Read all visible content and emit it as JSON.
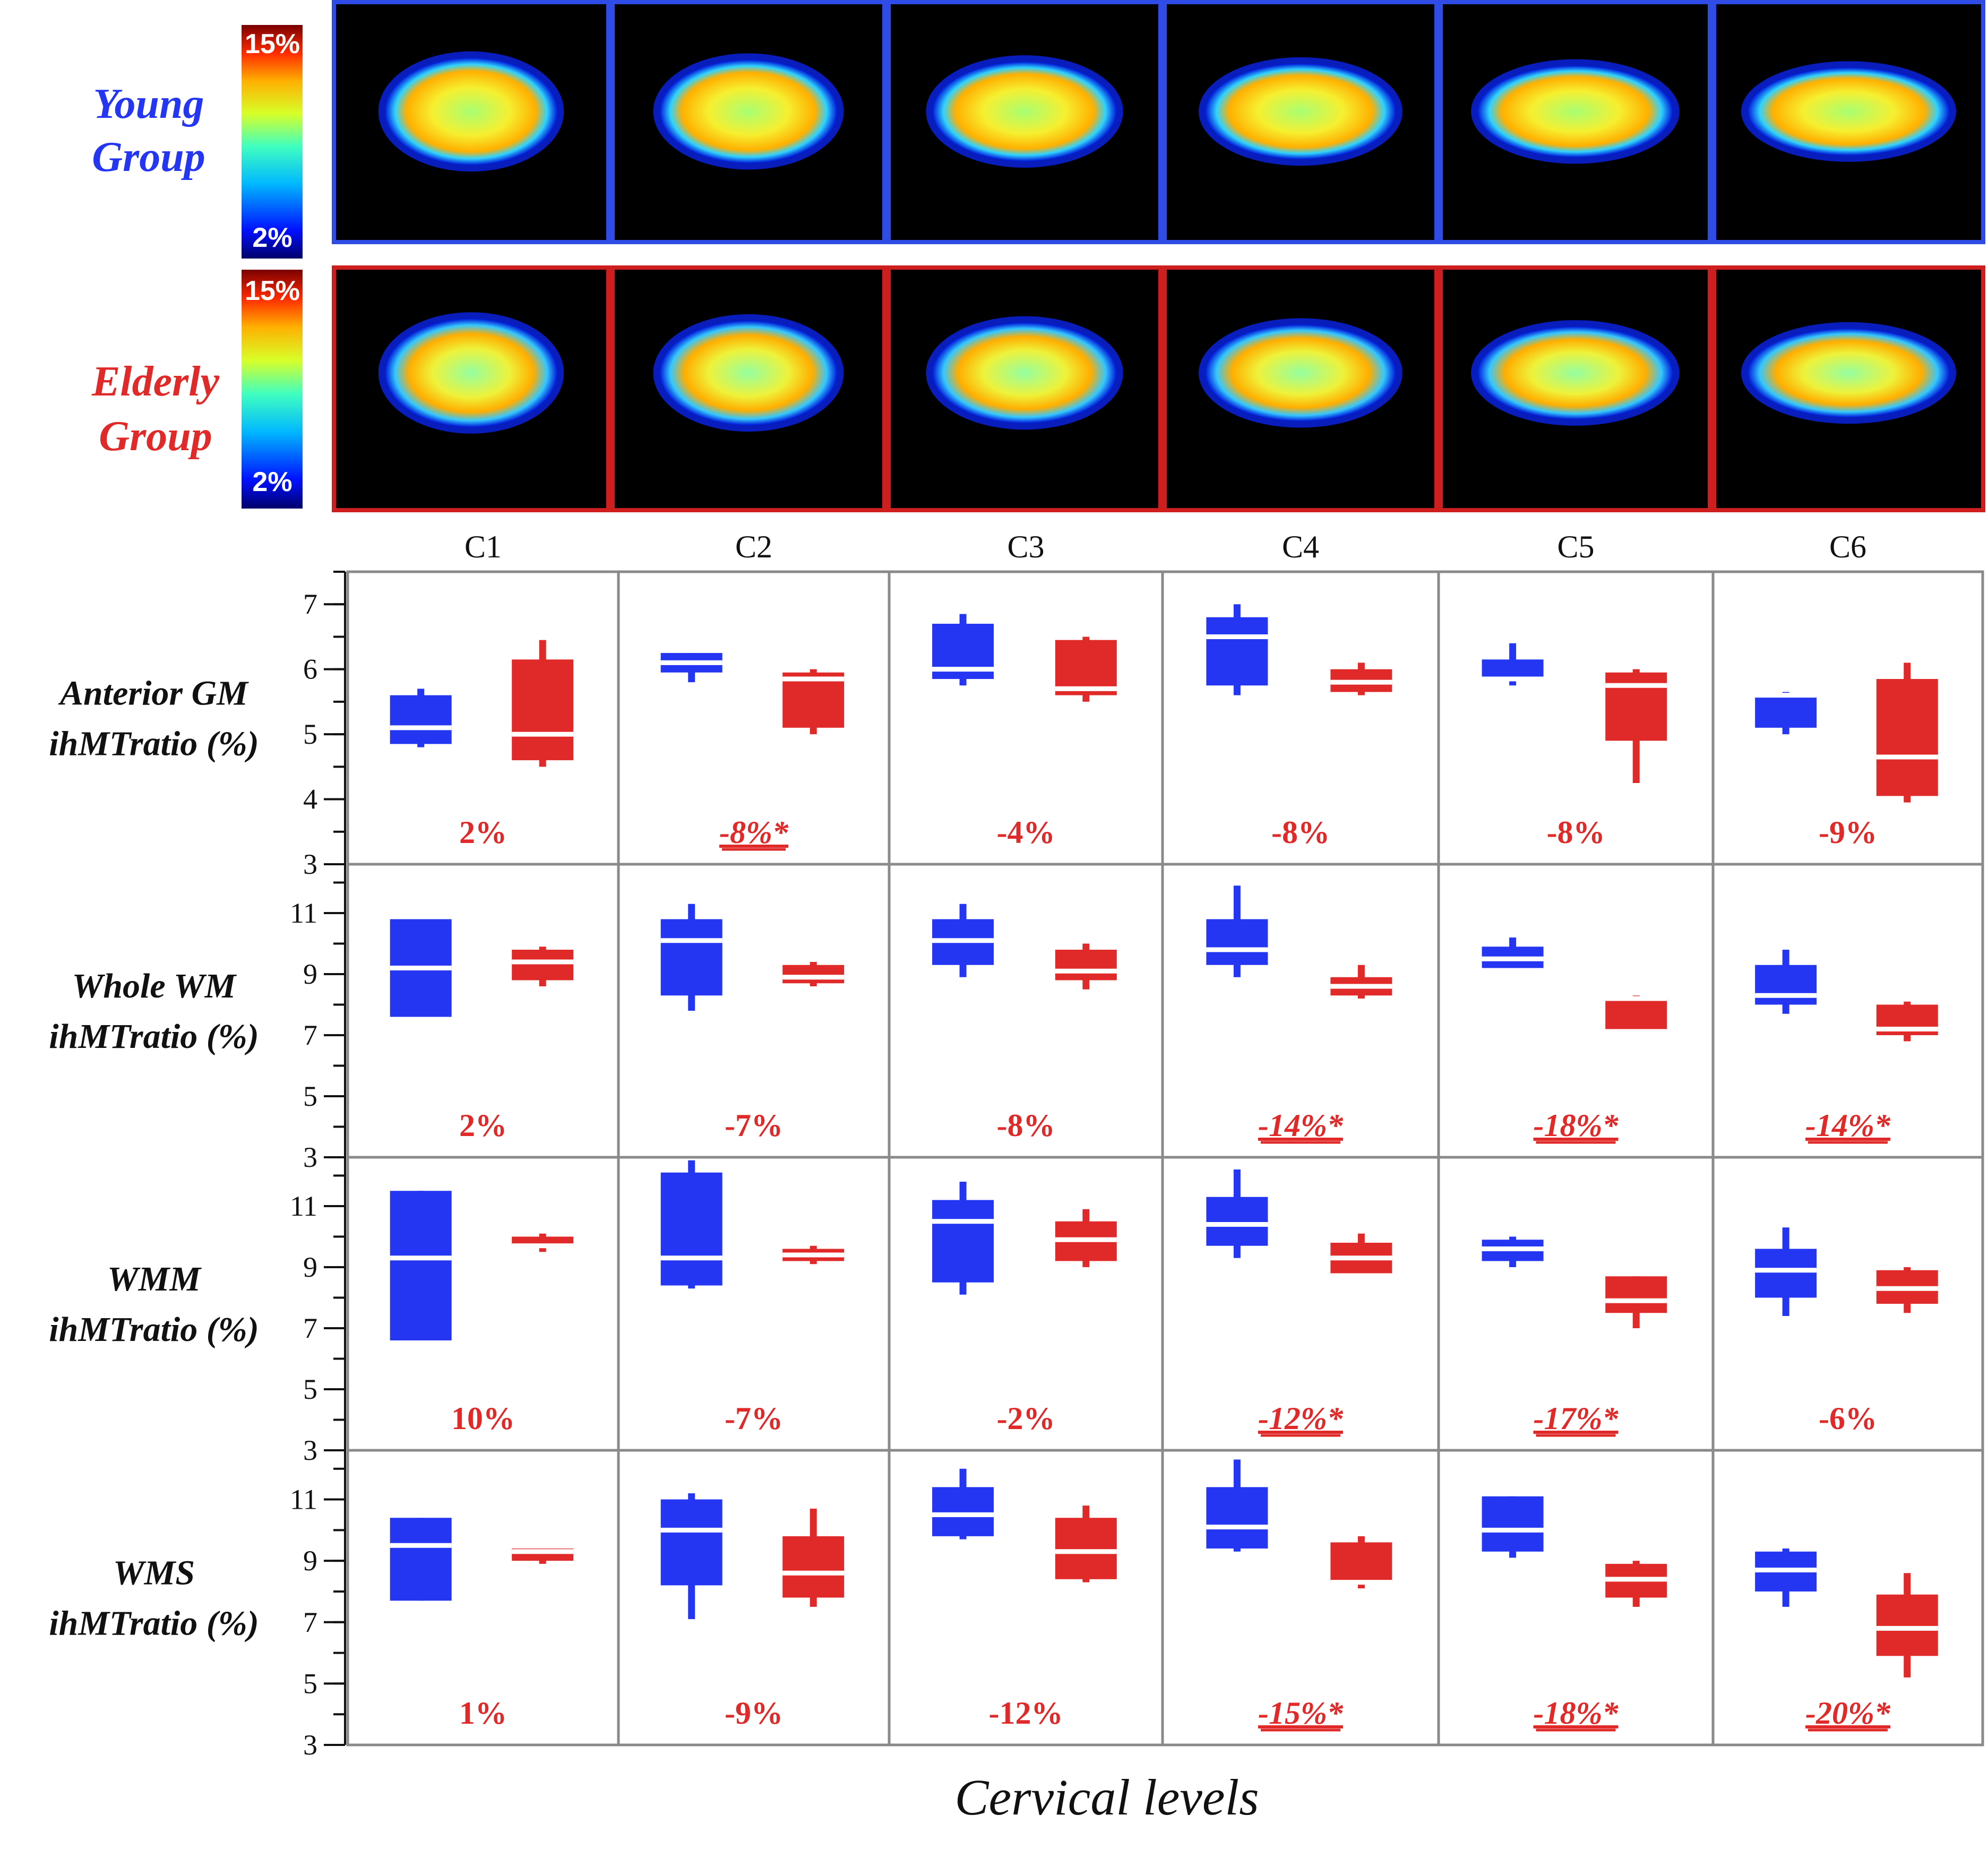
{
  "figure": {
    "young_group_label": "Young Group",
    "elderly_group_label": "Elderly Group",
    "colorbar_max": "15%",
    "colorbar_min": "2%",
    "x_axis_title": "Cervical levels"
  },
  "colors": {
    "young": "#2436f2",
    "elderly": "#e02a2a",
    "young_frame": "#2f4ce6",
    "elderly_frame": "#cf1e1e",
    "grid": "#8a8a8a"
  },
  "chart_data": {
    "type": "box",
    "levels": [
      "C1",
      "C2",
      "C3",
      "C4",
      "C5",
      "C6"
    ],
    "groups": [
      "Young",
      "Elderly"
    ],
    "panels": [
      {
        "ylabel_line1": "Anterior GM",
        "ylabel_line2": "ihMTratio (%)",
        "ylim": [
          3,
          7.5
        ],
        "ticks": [
          "3",
          "4",
          "5",
          "6",
          "7"
        ],
        "diffs": [
          {
            "text": "2%",
            "sig": false
          },
          {
            "text": "-8%*",
            "sig": true
          },
          {
            "text": "-4%",
            "sig": false
          },
          {
            "text": "-8%",
            "sig": false
          },
          {
            "text": "-8%",
            "sig": false
          },
          {
            "text": "-9%",
            "sig": false
          }
        ],
        "young": [
          {
            "min": 4.8,
            "q1": 4.85,
            "median": 5.1,
            "q3": 5.6,
            "max": 5.7
          },
          {
            "min": 5.8,
            "q1": 5.95,
            "median": 6.1,
            "q3": 6.25,
            "max": 6.25
          },
          {
            "min": 5.75,
            "q1": 5.85,
            "median": 6.0,
            "q3": 6.7,
            "max": 6.85
          },
          {
            "min": 5.6,
            "q1": 5.75,
            "median": 6.5,
            "q3": 6.8,
            "max": 7.0
          },
          {
            "min": 5.75,
            "q1": 5.85,
            "median": 5.85,
            "q3": 6.15,
            "max": 6.4
          },
          {
            "min": 5.0,
            "q1": 5.1,
            "median": 5.6,
            "q3": 5.6,
            "max": 5.65
          }
        ],
        "elderly": [
          {
            "min": 4.5,
            "q1": 4.6,
            "median": 5.0,
            "q3": 6.15,
            "max": 6.45
          },
          {
            "min": 5.0,
            "q1": 5.1,
            "median": 5.85,
            "q3": 5.95,
            "max": 6.0
          },
          {
            "min": 5.5,
            "q1": 5.6,
            "median": 5.7,
            "q3": 6.45,
            "max": 6.5
          },
          {
            "min": 5.6,
            "q1": 5.65,
            "median": 5.8,
            "q3": 6.0,
            "max": 6.1
          },
          {
            "min": 4.25,
            "q1": 4.9,
            "median": 5.75,
            "q3": 5.95,
            "max": 6.0
          },
          {
            "min": 3.95,
            "q1": 4.05,
            "median": 4.65,
            "q3": 5.85,
            "max": 6.1
          }
        ]
      },
      {
        "ylabel_line1": "Whole WM",
        "ylabel_line2": "ihMTratio (%)",
        "ylim": [
          3,
          12.6
        ],
        "ticks": [
          "3",
          "5",
          "7",
          "9",
          "11"
        ],
        "diffs": [
          {
            "text": "2%",
            "sig": false
          },
          {
            "text": "-7%",
            "sig": false
          },
          {
            "text": "-8%",
            "sig": false
          },
          {
            "text": "-14%*",
            "sig": true
          },
          {
            "text": "-18%*",
            "sig": true
          },
          {
            "text": "-14%*",
            "sig": true
          }
        ],
        "young": [
          {
            "min": 7.6,
            "q1": 7.6,
            "median": 9.2,
            "q3": 10.8,
            "max": 10.8
          },
          {
            "min": 7.8,
            "q1": 8.3,
            "median": 10.1,
            "q3": 10.8,
            "max": 11.3
          },
          {
            "min": 8.9,
            "q1": 9.3,
            "median": 10.1,
            "q3": 10.8,
            "max": 11.3
          },
          {
            "min": 8.9,
            "q1": 9.3,
            "median": 9.8,
            "q3": 10.8,
            "max": 11.9
          },
          {
            "min": 9.2,
            "q1": 9.2,
            "median": 9.5,
            "q3": 9.9,
            "max": 10.2
          },
          {
            "min": 7.7,
            "q1": 8.0,
            "median": 8.3,
            "q3": 9.3,
            "max": 9.8
          }
        ],
        "elderly": [
          {
            "min": 8.6,
            "q1": 8.8,
            "median": 9.4,
            "q3": 9.8,
            "max": 9.9
          },
          {
            "min": 8.6,
            "q1": 8.7,
            "median": 8.9,
            "q3": 9.3,
            "max": 9.4
          },
          {
            "min": 8.5,
            "q1": 8.8,
            "median": 9.1,
            "q3": 9.8,
            "max": 10.0
          },
          {
            "min": 8.2,
            "q1": 8.3,
            "median": 8.6,
            "q3": 8.9,
            "max": 9.3
          },
          {
            "min": 7.2,
            "q1": 7.2,
            "median": 8.2,
            "q3": 8.2,
            "max": 8.3
          },
          {
            "min": 6.8,
            "q1": 7.0,
            "median": 7.2,
            "q3": 8.0,
            "max": 8.1
          }
        ]
      },
      {
        "ylabel_line1": "WMM",
        "ylabel_line2": "ihMTratio (%)",
        "ylim": [
          3,
          12.6
        ],
        "ticks": [
          "3",
          "5",
          "7",
          "9",
          "11"
        ],
        "diffs": [
          {
            "text": "10%",
            "sig": false
          },
          {
            "text": "-7%",
            "sig": false
          },
          {
            "text": "-2%",
            "sig": false
          },
          {
            "text": "-12%*",
            "sig": true
          },
          {
            "text": "-17%*",
            "sig": true
          },
          {
            "text": "-6%",
            "sig": false
          }
        ],
        "young": [
          {
            "min": 6.6,
            "q1": 6.6,
            "median": 9.3,
            "q3": 11.5,
            "max": 11.5
          },
          {
            "min": 8.3,
            "q1": 8.4,
            "median": 9.3,
            "q3": 12.1,
            "max": 12.5
          },
          {
            "min": 8.1,
            "q1": 8.5,
            "median": 10.5,
            "q3": 11.2,
            "max": 11.8
          },
          {
            "min": 9.3,
            "q1": 9.7,
            "median": 10.4,
            "q3": 11.3,
            "max": 12.2
          },
          {
            "min": 9.0,
            "q1": 9.2,
            "median": 9.6,
            "q3": 9.9,
            "max": 10.0
          },
          {
            "min": 7.4,
            "q1": 8.0,
            "median": 8.9,
            "q3": 9.6,
            "max": 10.3
          }
        ],
        "elderly": [
          {
            "min": 9.5,
            "q1": 9.7,
            "median": 9.7,
            "q3": 10.0,
            "max": 10.1
          },
          {
            "min": 9.1,
            "q1": 9.2,
            "median": 9.4,
            "q3": 9.6,
            "max": 9.7
          },
          {
            "min": 9.0,
            "q1": 9.2,
            "median": 9.9,
            "q3": 10.5,
            "max": 10.9
          },
          {
            "min": 8.8,
            "q1": 8.8,
            "median": 9.3,
            "q3": 9.8,
            "max": 10.1
          },
          {
            "min": 7.0,
            "q1": 7.5,
            "median": 7.9,
            "q3": 8.7,
            "max": 8.7
          },
          {
            "min": 7.5,
            "q1": 7.8,
            "median": 8.3,
            "q3": 8.9,
            "max": 9.0
          }
        ]
      },
      {
        "ylabel_line1": "WMS",
        "ylabel_line2": "ihMTratio (%)",
        "ylim": [
          3,
          12.6
        ],
        "ticks": [
          "3",
          "5",
          "7",
          "9",
          "11"
        ],
        "diffs": [
          {
            "text": "1%",
            "sig": false
          },
          {
            "text": "-9%",
            "sig": false
          },
          {
            "text": "-12%",
            "sig": false
          },
          {
            "text": "-15%*",
            "sig": true
          },
          {
            "text": "-18%*",
            "sig": true
          },
          {
            "text": "-20%*",
            "sig": true
          }
        ],
        "young": [
          {
            "min": 7.7,
            "q1": 7.7,
            "median": 9.5,
            "q3": 10.4,
            "max": 10.4
          },
          {
            "min": 7.1,
            "q1": 8.2,
            "median": 10.0,
            "q3": 11.0,
            "max": 11.2
          },
          {
            "min": 9.7,
            "q1": 9.8,
            "median": 10.5,
            "q3": 11.4,
            "max": 12.0
          },
          {
            "min": 9.3,
            "q1": 9.4,
            "median": 10.1,
            "q3": 11.4,
            "max": 12.3
          },
          {
            "min": 9.1,
            "q1": 9.3,
            "median": 10.0,
            "q3": 11.1,
            "max": 11.1
          },
          {
            "min": 7.5,
            "q1": 8.0,
            "median": 8.7,
            "q3": 9.3,
            "max": 9.4
          }
        ],
        "elderly": [
          {
            "min": 8.9,
            "q1": 9.0,
            "median": 9.3,
            "q3": 9.4,
            "max": 9.4
          },
          {
            "min": 7.5,
            "q1": 7.8,
            "median": 8.6,
            "q3": 9.8,
            "max": 10.7
          },
          {
            "min": 8.3,
            "q1": 8.4,
            "median": 9.3,
            "q3": 10.4,
            "max": 10.8
          },
          {
            "min": 8.1,
            "q1": 8.3,
            "median": 8.3,
            "q3": 9.6,
            "max": 9.8
          },
          {
            "min": 7.5,
            "q1": 7.8,
            "median": 8.4,
            "q3": 8.9,
            "max": 9.0
          },
          {
            "min": 5.2,
            "q1": 5.9,
            "median": 6.8,
            "q3": 7.9,
            "max": 8.6
          }
        ]
      }
    ]
  }
}
